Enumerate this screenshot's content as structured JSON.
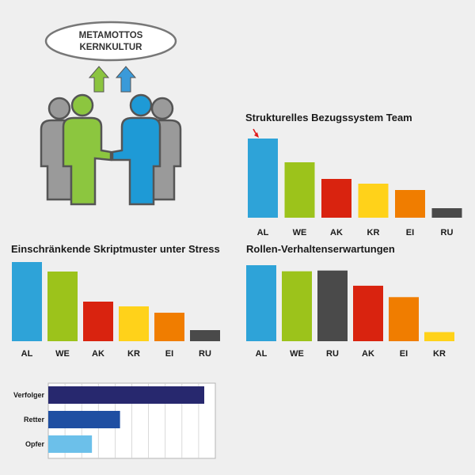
{
  "illustration": {
    "oval_line1": "METAMOTTOS",
    "oval_line2": "KERNKULTUR",
    "arrow_colors": [
      "#8bc43f",
      "#3a9ad9"
    ],
    "person_colors": {
      "gray": "#9a9a9a",
      "green": "#8cc63f",
      "blue": "#1e9ad6",
      "outline": "#555555"
    }
  },
  "chart_data": [
    {
      "type": "bar",
      "title": "Strukturelles Bezugssystem Team",
      "categories": [
        "AL",
        "WE",
        "AK",
        "KR",
        "EI",
        "RU"
      ],
      "values": [
        100,
        70,
        49,
        43,
        35,
        12
      ],
      "colors": [
        "#2ea3d8",
        "#9cc31b",
        "#d9230f",
        "#ffd21a",
        "#f07d00",
        "#4a4a4a"
      ],
      "annotation": "red-arrow-on-AL"
    },
    {
      "type": "bar",
      "title": "Einschränkende Skriptmuster unter Stress",
      "categories": [
        "AL",
        "WE",
        "AK",
        "KR",
        "EI",
        "RU"
      ],
      "values": [
        100,
        88,
        50,
        44,
        36,
        14
      ],
      "colors": [
        "#2ea3d8",
        "#9cc31b",
        "#d9230f",
        "#ffd21a",
        "#f07d00",
        "#4a4a4a"
      ]
    },
    {
      "type": "bar",
      "title": "Rollen-Verhaltenserwartungen",
      "categories": [
        "AL",
        "WE",
        "RU",
        "AK",
        "EI",
        "KR"
      ],
      "values": [
        100,
        92,
        93,
        73,
        58,
        12
      ],
      "colors": [
        "#2ea3d8",
        "#9cc31b",
        "#4a4a4a",
        "#d9230f",
        "#f07d00",
        "#ffd21a"
      ]
    },
    {
      "type": "bar",
      "orientation": "horizontal",
      "categories": [
        "Verfolger",
        "Retter",
        "Opfer"
      ],
      "values": [
        100,
        46,
        28
      ],
      "colors": [
        "#27286e",
        "#1f4fa2",
        "#6cc0ea"
      ],
      "xlim": [
        0,
        100
      ],
      "grid": true
    }
  ]
}
